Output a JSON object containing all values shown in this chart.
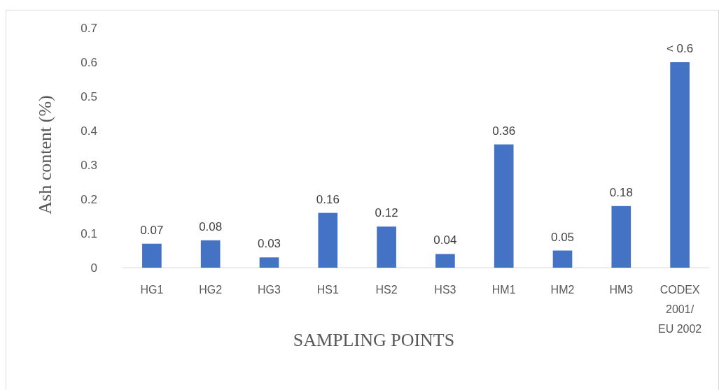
{
  "chart_data": {
    "type": "bar",
    "xlabel": "SAMPLING POINTS",
    "ylabel": "Ash content (%)",
    "categories": [
      "HG1",
      "HG2",
      "HG3",
      "HS1",
      "HS2",
      "HS3",
      "HM1",
      "HM2",
      "HM3",
      "CODEX 2001/ EU 2002"
    ],
    "values": [
      0.07,
      0.08,
      0.03,
      0.16,
      0.12,
      0.04,
      0.36,
      0.05,
      0.18,
      0.6
    ],
    "value_labels": [
      "0.07",
      "0.08",
      "0.03",
      "0.16",
      "0.12",
      "0.04",
      "0.36",
      "0.05",
      "0.18",
      "< 0.6"
    ],
    "color": "#4472c4",
    "ylim": [
      0,
      0.7
    ],
    "yticks": [
      0,
      0.1,
      0.2,
      0.3,
      0.4,
      0.5,
      0.6,
      0.7
    ],
    "grid": false
  }
}
